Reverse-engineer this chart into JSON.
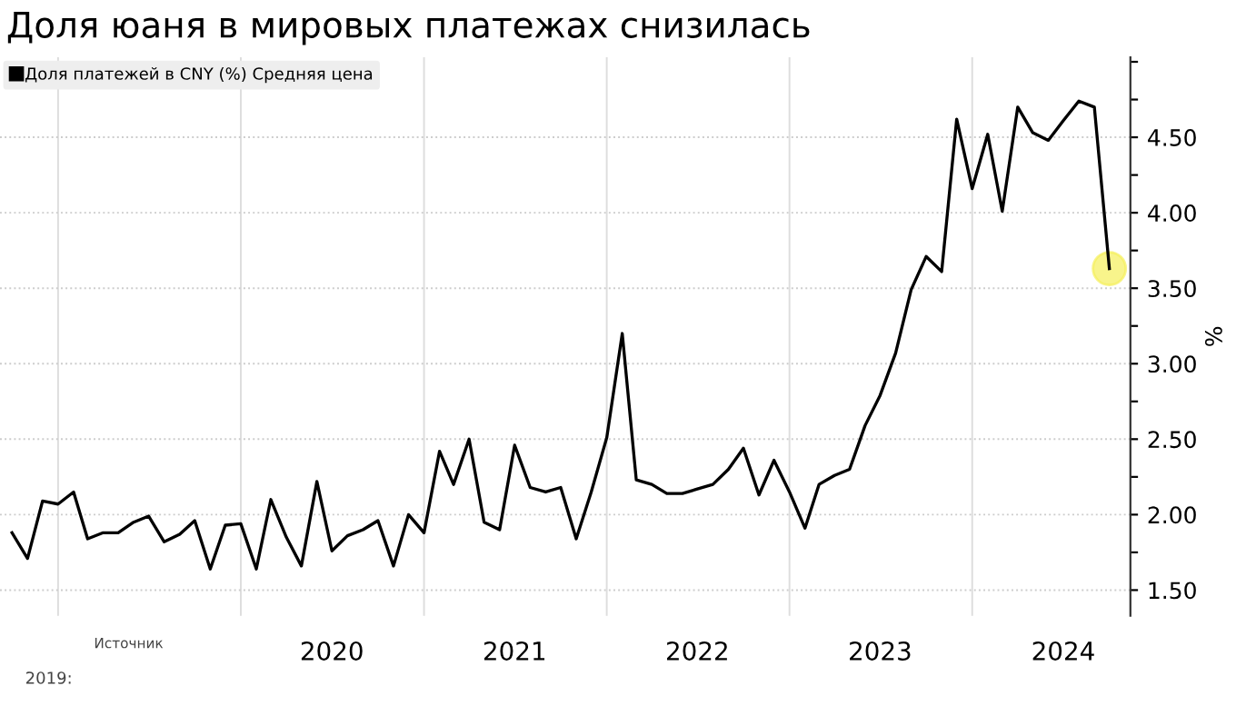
{
  "chart_data": {
    "type": "line",
    "title": "Доля юаня в мировых платежах снизилась",
    "ylabel": "%",
    "x": [
      "2018-10",
      "2018-11",
      "2018-12",
      "2019-01",
      "2019-02",
      "2019-03",
      "2019-04",
      "2019-05",
      "2019-06",
      "2019-07",
      "2019-08",
      "2019-09",
      "2019-10",
      "2019-11",
      "2019-12",
      "2020-01",
      "2020-02",
      "2020-03",
      "2020-04",
      "2020-05",
      "2020-06",
      "2020-07",
      "2020-08",
      "2020-09",
      "2020-10",
      "2020-11",
      "2020-12",
      "2021-01",
      "2021-02",
      "2021-03",
      "2021-04",
      "2021-05",
      "2021-06",
      "2021-07",
      "2021-08",
      "2021-09",
      "2021-10",
      "2021-11",
      "2021-12",
      "2022-01",
      "2022-02",
      "2022-03",
      "2022-04",
      "2022-05",
      "2022-06",
      "2022-07",
      "2022-08",
      "2022-09",
      "2022-10",
      "2022-11",
      "2022-12",
      "2023-01",
      "2023-02",
      "2023-03",
      "2023-04",
      "2023-05",
      "2023-06",
      "2023-07",
      "2023-08",
      "2023-09",
      "2023-10",
      "2023-11",
      "2023-12",
      "2024-01",
      "2024-02",
      "2024-03",
      "2024-04",
      "2024-05",
      "2024-06",
      "2024-07",
      "2024-08",
      "2024-09",
      "2024-10"
    ],
    "series": [
      {
        "name": "Доля платежей в CNY (%) Средняя цена",
        "color": "#000000",
        "values": [
          1.88,
          1.71,
          2.09,
          2.07,
          2.15,
          1.84,
          1.88,
          1.88,
          1.95,
          1.99,
          1.82,
          1.87,
          1.96,
          1.64,
          1.93,
          1.94,
          1.64,
          2.1,
          1.85,
          1.66,
          2.22,
          1.76,
          1.86,
          1.9,
          1.96,
          1.66,
          2.0,
          1.88,
          2.42,
          2.2,
          2.5,
          1.95,
          1.9,
          2.46,
          2.18,
          2.15,
          2.18,
          1.84,
          2.15,
          2.51,
          3.2,
          2.23,
          2.2,
          2.14,
          2.14,
          2.17,
          2.2,
          2.3,
          2.44,
          2.13,
          2.36,
          2.15,
          1.91,
          2.2,
          2.26,
          2.3,
          2.59,
          2.79,
          3.07,
          3.49,
          3.71,
          3.61,
          4.62,
          4.16,
          4.52,
          4.01,
          4.7,
          4.53,
          4.48,
          4.61,
          4.74,
          4.7,
          3.63
        ]
      }
    ],
    "xlim": [
      "2018-09-07",
      "2024-11-12"
    ],
    "xticks": [
      {
        "value": "2019-01",
        "label": null
      },
      {
        "value": "2020-01",
        "label": null
      },
      {
        "value": "2020-07",
        "label": "2020"
      },
      {
        "value": "2021-01",
        "label": null
      },
      {
        "value": "2021-07",
        "label": "2021"
      },
      {
        "value": "2022-01",
        "label": null
      },
      {
        "value": "2022-07",
        "label": "2022"
      },
      {
        "value": "2023-01",
        "label": null
      },
      {
        "value": "2023-07",
        "label": "2023"
      },
      {
        "value": "2024-01",
        "label": null
      },
      {
        "value": "2024-07",
        "label": "2024"
      }
    ],
    "ylim": [
      1.33,
      5.03
    ],
    "yticks": [
      {
        "value": 1.5,
        "label": "1.50"
      },
      {
        "value": 1.75,
        "label": null
      },
      {
        "value": 2.0,
        "label": "2.00"
      },
      {
        "value": 2.25,
        "label": null
      },
      {
        "value": 2.5,
        "label": "2.50"
      },
      {
        "value": 2.75,
        "label": null
      },
      {
        "value": 3.0,
        "label": "3.00"
      },
      {
        "value": 3.25,
        "label": null
      },
      {
        "value": 3.5,
        "label": "3.50"
      },
      {
        "value": 3.75,
        "label": null
      },
      {
        "value": 4.0,
        "label": "4.00"
      },
      {
        "value": 4.25,
        "label": null
      },
      {
        "value": 4.5,
        "label": "4.50"
      },
      {
        "value": 4.75,
        "label": null
      },
      {
        "value": 5.0,
        "label": null
      }
    ],
    "grid": true,
    "legend": "top left",
    "annotations": [
      "Источник",
      "2019:"
    ]
  }
}
